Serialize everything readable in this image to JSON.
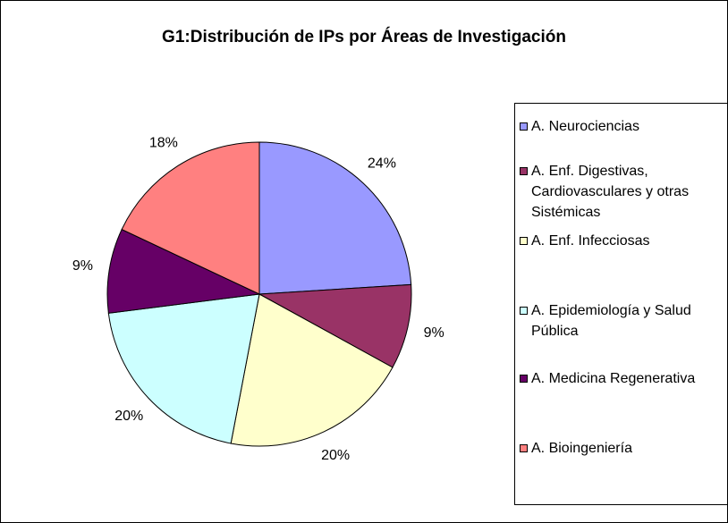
{
  "chart_data": {
    "type": "pie",
    "title": "G1:Distribución de IPs por Áreas de Investigación",
    "categories": [
      "A. Neurociencias",
      "A. Enf. Digestivas, Cardiovasculares y otras Sistémicas",
      "A. Enf. Infecciosas",
      "A. Epidemiología y Salud Pública",
      "A. Medicina Regenerativa",
      "A. Bioingeniería"
    ],
    "values": [
      24,
      9,
      20,
      20,
      9,
      18
    ],
    "value_labels": [
      "24%",
      "9%",
      "20%",
      "20%",
      "9%",
      "18%"
    ],
    "colors": [
      "#9999FF",
      "#993366",
      "#FFFFCC",
      "#CCFFFF",
      "#660066",
      "#FF8080"
    ],
    "legend": "right"
  }
}
